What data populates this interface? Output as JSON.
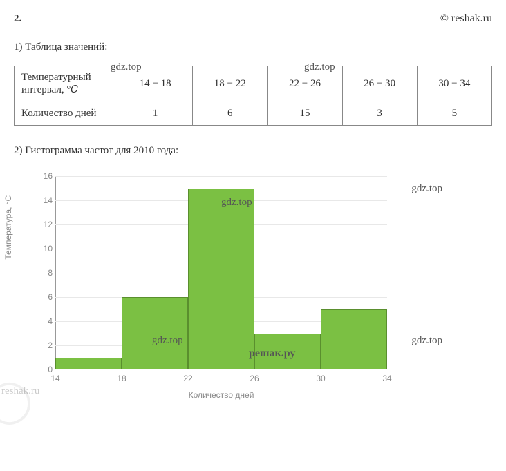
{
  "task_number": "2.",
  "copyright": "© reshak.ru",
  "section1_title": "1) Таблица значений:",
  "table": {
    "row1_header": "Температурный интервал, °𝐶",
    "row2_header": "Количество дней",
    "cols": [
      "14 − 18",
      "18 − 22",
      "22 − 26",
      "26 − 30",
      "30 − 34"
    ],
    "vals": [
      "1",
      "6",
      "15",
      "3",
      "5"
    ]
  },
  "section2_title": "2) Гистограмма частот для 2010 года:",
  "chart": {
    "type": "histogram",
    "y_label": "Температура, °C",
    "x_label": "Количество дней",
    "y_ticks": [
      0,
      2,
      4,
      6,
      8,
      10,
      12,
      14,
      16
    ],
    "ylim": [
      0,
      16
    ],
    "x_ticks": [
      14,
      18,
      22,
      26,
      30,
      34
    ],
    "xlim": [
      14,
      34
    ],
    "bar_color": "#7bc043",
    "bar_border": "#5a8f2e",
    "grid_color": "#e8e8e8",
    "axis_color": "#999999",
    "background_color": "#ffffff",
    "bars": [
      {
        "start": 14,
        "end": 18,
        "height": 1
      },
      {
        "start": 18,
        "end": 22,
        "height": 6
      },
      {
        "start": 22,
        "end": 26,
        "height": 15
      },
      {
        "start": 26,
        "end": 30,
        "height": 3
      },
      {
        "start": 30,
        "end": 34,
        "height": 5
      }
    ],
    "tick_fontsize": 12,
    "label_fontsize": 12
  },
  "watermarks": {
    "gdz_top": "gdz.top",
    "reshak": "решак.ру",
    "reshak_en": "reshak.ru"
  }
}
